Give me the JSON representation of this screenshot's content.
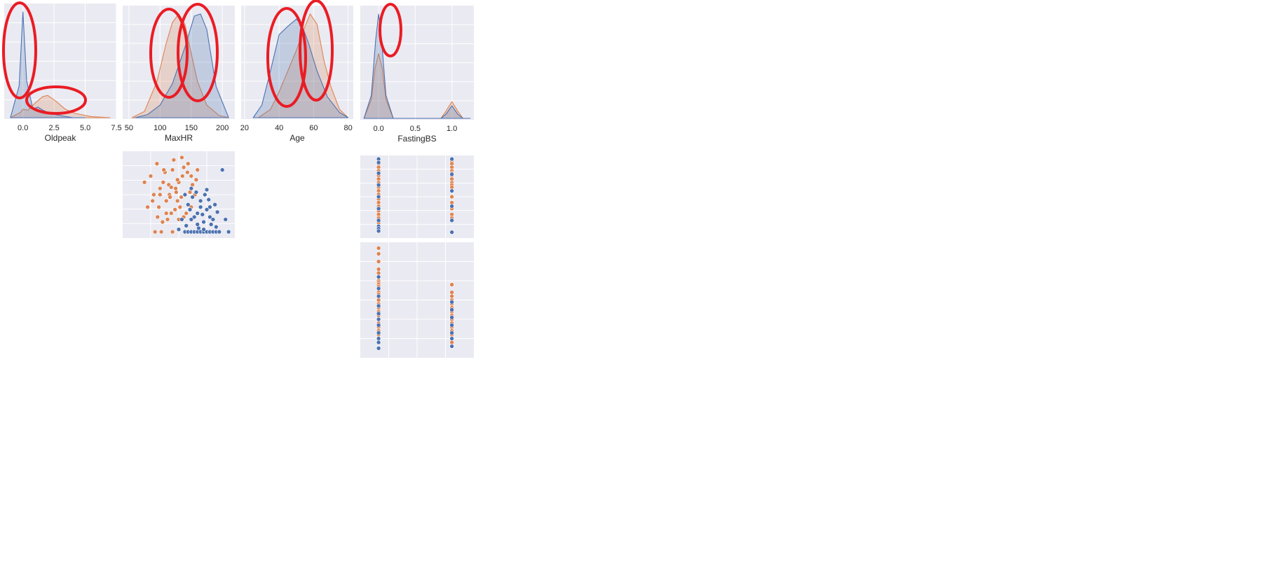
{
  "chart_data": [
    {
      "type": "area",
      "xlabel": "Oldpeak",
      "xticks": [
        "0.0",
        "2.5",
        "5.0",
        "7.5"
      ],
      "xlim": [
        -1.5,
        7.5
      ],
      "series": [
        {
          "color": "#4c72b0",
          "x": [
            -1.0,
            -0.3,
            0.0,
            0.3,
            0.8,
            1.2,
            1.6,
            2.2,
            3.0,
            4.0,
            5.0
          ],
          "y": [
            0.0,
            0.3,
            1.0,
            0.35,
            0.08,
            0.1,
            0.07,
            0.04,
            0.02,
            0.0,
            0.0
          ]
        },
        {
          "color": "#dd8452",
          "x": [
            -1.0,
            -0.2,
            0.0,
            0.4,
            1.0,
            1.6,
            2.0,
            2.6,
            3.4,
            4.2,
            5.5,
            7.0
          ],
          "y": [
            0.0,
            0.05,
            0.08,
            0.07,
            0.14,
            0.2,
            0.21,
            0.16,
            0.08,
            0.04,
            0.01,
            0.0
          ]
        }
      ]
    },
    {
      "type": "area",
      "xlabel": "MaxHR",
      "xticks": [
        "50",
        "100",
        "150",
        "200"
      ],
      "xlim": [
        40,
        220
      ],
      "series": [
        {
          "color": "#4c72b0",
          "x": [
            60,
            80,
            100,
            120,
            140,
            155,
            165,
            175,
            190,
            210
          ],
          "y": [
            0.0,
            0.03,
            0.12,
            0.33,
            0.68,
            0.98,
            1.0,
            0.85,
            0.3,
            0.0
          ]
        },
        {
          "color": "#dd8452",
          "x": [
            55,
            75,
            95,
            110,
            120,
            130,
            140,
            150,
            160,
            175,
            195,
            210
          ],
          "y": [
            0.0,
            0.06,
            0.35,
            0.72,
            0.92,
            1.0,
            0.9,
            0.62,
            0.35,
            0.12,
            0.02,
            0.0
          ]
        }
      ]
    },
    {
      "type": "area",
      "xlabel": "Age",
      "xticks": [
        "20",
        "40",
        "60",
        "80"
      ],
      "xlim": [
        18,
        83
      ],
      "series": [
        {
          "color": "#4c72b0",
          "x": [
            25,
            30,
            35,
            40,
            45,
            50,
            53,
            57,
            62,
            68,
            75,
            80
          ],
          "y": [
            0.0,
            0.12,
            0.45,
            0.8,
            0.88,
            0.95,
            0.9,
            0.72,
            0.45,
            0.2,
            0.05,
            0.0
          ]
        },
        {
          "color": "#dd8452",
          "x": [
            28,
            35,
            40,
            45,
            50,
            55,
            58,
            62,
            66,
            70,
            75,
            80
          ],
          "y": [
            0.0,
            0.08,
            0.25,
            0.45,
            0.65,
            0.88,
            1.0,
            0.9,
            0.55,
            0.3,
            0.08,
            0.0
          ]
        }
      ]
    },
    {
      "type": "area",
      "xlabel": "FastingBS",
      "xticks": [
        "0.0",
        "0.5",
        "1.0"
      ],
      "xlim": [
        -0.25,
        1.3
      ],
      "series": [
        {
          "color": "#4c72b0",
          "x": [
            -0.2,
            -0.1,
            -0.04,
            0.0,
            0.04,
            0.1,
            0.2,
            0.5,
            0.85,
            0.92,
            1.0,
            1.08,
            1.15,
            1.25
          ],
          "y": [
            0.0,
            0.22,
            0.75,
            1.0,
            0.75,
            0.22,
            0.0,
            0.0,
            0.0,
            0.04,
            0.12,
            0.04,
            0.0,
            0.0
          ]
        },
        {
          "color": "#dd8452",
          "x": [
            -0.2,
            -0.1,
            -0.05,
            0.0,
            0.05,
            0.1,
            0.2,
            0.5,
            0.85,
            0.92,
            1.0,
            1.08,
            1.15,
            1.25
          ],
          "y": [
            0.0,
            0.18,
            0.48,
            0.62,
            0.48,
            0.18,
            0.0,
            0.0,
            0.0,
            0.07,
            0.16,
            0.07,
            0.0,
            0.0
          ]
        }
      ]
    },
    {
      "type": "scatter",
      "xlim": [
        40,
        220
      ],
      "ylim": [
        -0.5,
        6.5
      ],
      "series": [
        {
          "color": "#dd8452",
          "x": [
            75,
            80,
            85,
            90,
            95,
            100,
            105,
            110,
            115,
            120,
            125,
            130,
            135,
            140,
            145,
            150,
            98,
            108,
            118,
            128,
            138,
            148,
            158,
            112,
            122,
            132,
            142,
            152,
            102,
            92,
            116,
            126,
            136,
            146,
            156,
            88,
            106,
            114,
            124,
            134,
            144,
            96,
            104,
            120,
            140,
            160,
            130,
            110,
            150,
            100,
            118,
            128,
            138
          ],
          "y": [
            4.0,
            2.0,
            4.5,
            3.0,
            5.5,
            3.5,
            4.0,
            2.5,
            3.0,
            5.0,
            3.5,
            4.0,
            6.0,
            3.0,
            5.5,
            4.5,
            2.0,
            4.8,
            1.5,
            2.5,
            5.2,
            3.2,
            4.2,
            1.0,
            5.8,
            2.0,
            1.5,
            3.8,
            0.0,
            0.0,
            2.8,
            3.2,
            4.5,
            2.2,
            3.0,
            2.5,
            5.0,
            3.8,
            1.8,
            2.8,
            4.8,
            1.2,
            0.8,
            0.0,
            0.0,
            5.0,
            1.0,
            1.5,
            2.0,
            3.0,
            3.6,
            4.2,
            1.2
          ]
        },
        {
          "color": "#4c72b0",
          "x": [
            140,
            145,
            150,
            155,
            160,
            165,
            170,
            175,
            180,
            185,
            190,
            195,
            150,
            160,
            170,
            180,
            145,
            155,
            165,
            175,
            185,
            135,
            142,
            152,
            162,
            172,
            182,
            192,
            148,
            158,
            168,
            178,
            188,
            200,
            205,
            210,
            140,
            150,
            160,
            170,
            180,
            190,
            130,
            165,
            175
          ],
          "y": [
            0.0,
            0.0,
            0.0,
            0.0,
            0.0,
            0.0,
            0.0,
            0.0,
            0.0,
            0.0,
            0.0,
            0.0,
            1.0,
            1.5,
            0.8,
            2.0,
            2.2,
            1.2,
            2.5,
            1.8,
            1.0,
            1.0,
            0.5,
            2.8,
            0.3,
            3.0,
            0.6,
            1.6,
            1.8,
            3.2,
            1.4,
            2.6,
            2.2,
            5.0,
            1.0,
            0.0,
            3.0,
            3.5,
            0.6,
            0.2,
            1.2,
            0.4,
            0.2,
            2.0,
            3.4
          ]
        }
      ]
    },
    {
      "type": "scatter",
      "xlim": [
        -0.25,
        1.3
      ],
      "ylim": [
        -0.5,
        6.5
      ],
      "series": [
        {
          "color": "#dd8452",
          "x": [
            0,
            0,
            0,
            0,
            0,
            0,
            0,
            0,
            0,
            0,
            0,
            0,
            0,
            0,
            0,
            0,
            0,
            0,
            0,
            0,
            0,
            0,
            0,
            0,
            1,
            1,
            1,
            1,
            1,
            1,
            1,
            1,
            1,
            1,
            1,
            1,
            1,
            1,
            1,
            1,
            1,
            1
          ],
          "y": [
            6.2,
            6.0,
            5.8,
            5.5,
            5.2,
            5.0,
            4.8,
            4.5,
            4.2,
            4.0,
            3.8,
            3.5,
            3.2,
            3.0,
            2.8,
            2.5,
            2.2,
            2.0,
            1.8,
            1.5,
            1.2,
            1.0,
            0.8,
            0.5,
            6.2,
            6.0,
            5.8,
            5.5,
            5.2,
            5.0,
            4.8,
            4.5,
            4.2,
            4.0,
            3.8,
            3.5,
            3.0,
            2.5,
            2.0,
            1.5,
            1.2,
            1.0
          ]
        },
        {
          "color": "#4c72b0",
          "x": [
            0,
            0,
            0,
            0,
            0,
            0,
            0,
            0,
            0,
            0,
            1,
            1,
            1,
            1,
            1,
            1
          ],
          "y": [
            6.2,
            5.9,
            5.0,
            4.0,
            3.0,
            2.0,
            1.0,
            0.5,
            0.3,
            0.1,
            6.2,
            4.9,
            3.5,
            2.2,
            1.0,
            0.0
          ]
        }
      ]
    },
    {
      "type": "scatter",
      "xlim": [
        -0.25,
        1.3
      ],
      "ylim": [
        20,
        80
      ],
      "series": [
        {
          "color": "#dd8452",
          "x": [
            0,
            0,
            0,
            0,
            0,
            0,
            0,
            0,
            0,
            0,
            0,
            0,
            0,
            0,
            0,
            0,
            0,
            0,
            0,
            0,
            0,
            0,
            0,
            0,
            0,
            0,
            0,
            0,
            1,
            1,
            1,
            1,
            1,
            1,
            1,
            1,
            1,
            1,
            1,
            1,
            1,
            1,
            1,
            1
          ],
          "y": [
            77,
            74,
            70,
            66,
            64,
            62,
            60,
            59,
            58,
            57,
            56,
            55,
            54,
            53,
            52,
            51,
            50,
            48,
            46,
            44,
            42,
            40,
            38,
            36,
            34,
            32,
            30,
            28,
            58,
            54,
            52,
            50,
            48,
            46,
            44,
            42,
            40,
            38,
            36,
            34,
            32,
            30,
            28,
            26
          ]
        },
        {
          "color": "#4c72b0",
          "x": [
            0,
            0,
            0,
            0,
            0,
            0,
            0,
            0,
            0,
            0,
            0,
            1,
            1,
            1,
            1,
            1,
            1,
            1
          ],
          "y": [
            62,
            56,
            52,
            47,
            43,
            40,
            37,
            33,
            30,
            28,
            25,
            49,
            45,
            41,
            37,
            33,
            30,
            26
          ]
        }
      ]
    }
  ]
}
